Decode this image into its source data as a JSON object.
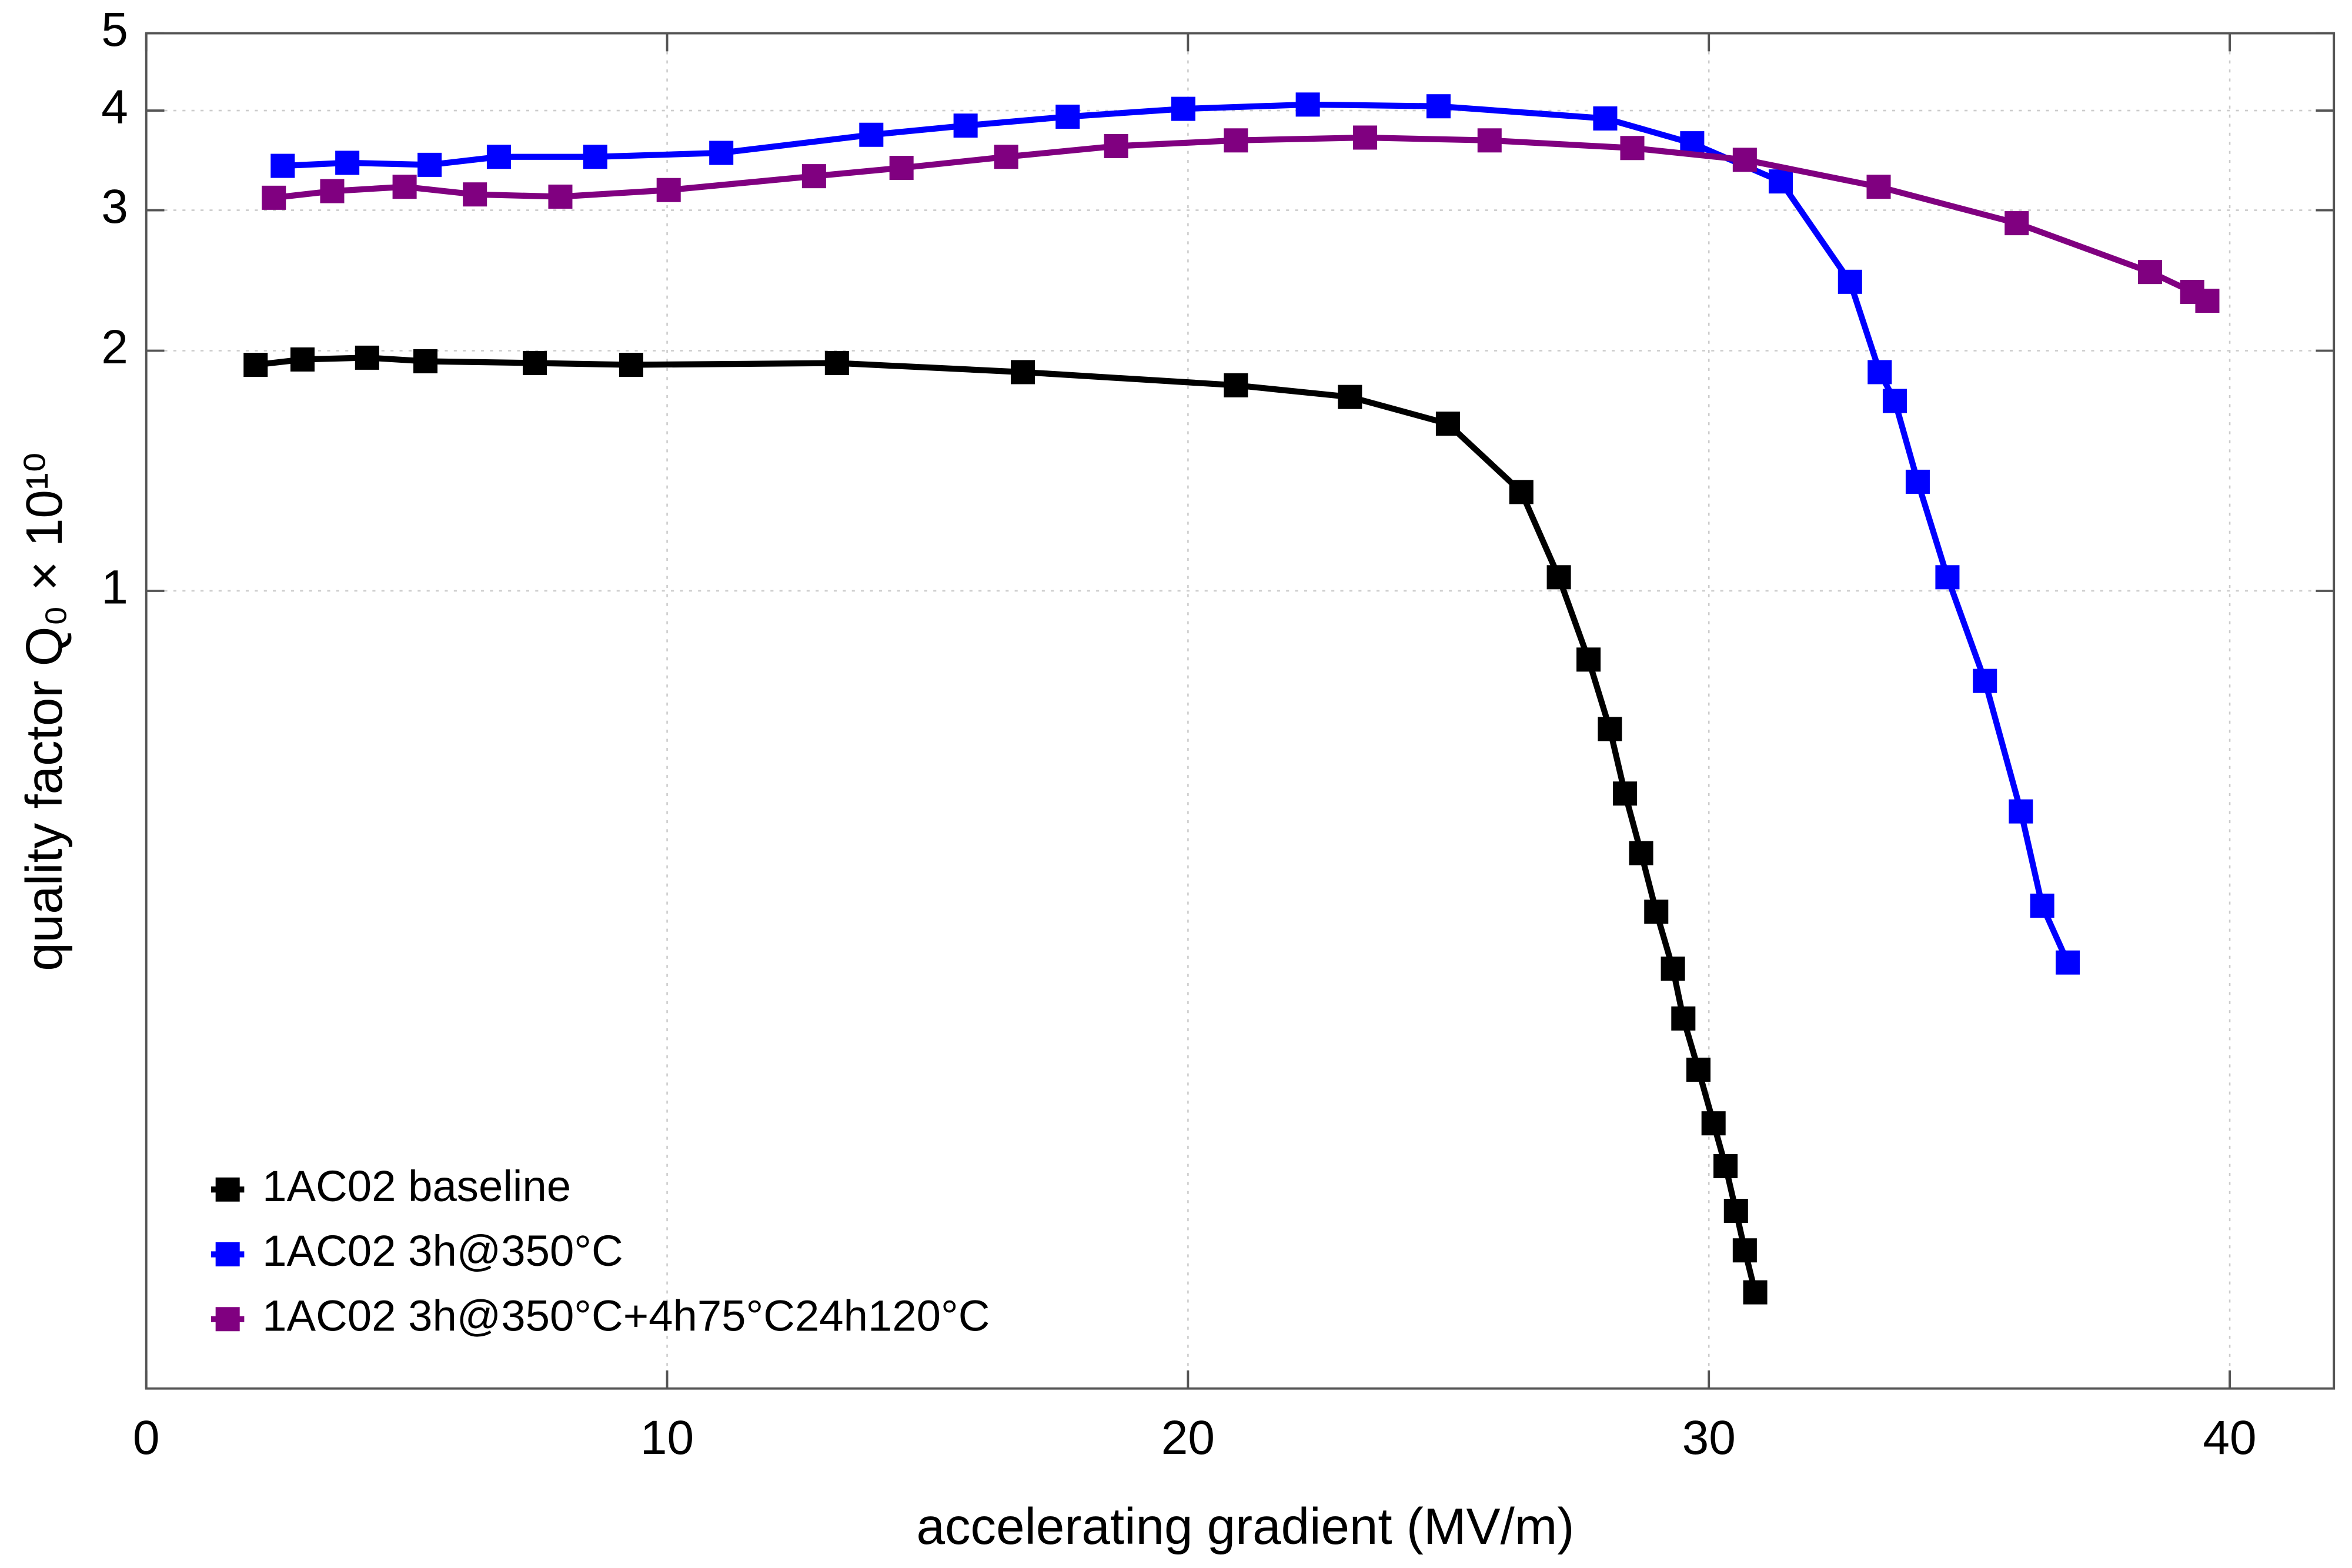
{
  "chart_data": {
    "type": "line",
    "xlabel": "accelerating gradient (MV/m)",
    "ylabel": "quality factor Q₀ × 10¹⁰",
    "xlim": [
      0,
      42
    ],
    "xticks": [
      0,
      10,
      20,
      30,
      40
    ],
    "ylim": [
      0.1,
      5
    ],
    "yticks": [
      1,
      2,
      3,
      4,
      5
    ],
    "log_y": true,
    "grid": true,
    "legend": "lower left",
    "series": [
      {
        "name": "1AC02 baseline",
        "color": "#000000",
        "x": [
          2.1,
          3.0,
          4.24,
          5.36,
          7.46,
          9.31,
          13.26,
          16.83,
          20.92,
          23.11,
          24.99,
          26.4,
          27.12,
          27.69,
          28.1,
          28.39,
          28.7,
          28.99,
          29.31,
          29.51,
          29.8,
          30.09,
          30.32,
          30.52,
          30.69,
          30.89
        ],
        "values": [
          1.92,
          1.95,
          1.96,
          1.94,
          1.93,
          1.92,
          1.93,
          1.88,
          1.81,
          1.75,
          1.62,
          1.33,
          1.04,
          0.82,
          0.671,
          0.557,
          0.469,
          0.396,
          0.336,
          0.291,
          0.251,
          0.215,
          0.19,
          0.167,
          0.149,
          0.132
        ]
      },
      {
        "name": "1AC02 3h@350°C",
        "color": "#0000ff",
        "x": [
          2.62,
          3.86,
          5.44,
          6.77,
          8.62,
          11.04,
          13.92,
          15.73,
          17.69,
          19.91,
          22.3,
          24.81,
          28.01,
          29.68,
          31.38,
          32.71,
          33.28,
          33.57,
          34.01,
          34.58,
          35.3,
          35.99,
          36.4,
          36.89
        ],
        "values": [
          3.41,
          3.44,
          3.42,
          3.5,
          3.5,
          3.54,
          3.73,
          3.83,
          3.93,
          4.02,
          4.07,
          4.05,
          3.91,
          3.64,
          3.26,
          2.44,
          1.88,
          1.73,
          1.37,
          1.04,
          0.771,
          0.529,
          0.403,
          0.342
        ]
      },
      {
        "name": "1AC02 3h@350°C+4h75°C24h120°C",
        "color": "#800080",
        "x": [
          2.45,
          3.57,
          4.96,
          6.31,
          7.95,
          10.03,
          12.82,
          14.5,
          16.51,
          18.62,
          20.92,
          23.4,
          25.79,
          28.53,
          30.69,
          33.26,
          35.91,
          38.47,
          39.28,
          39.57
        ],
        "values": [
          3.11,
          3.17,
          3.21,
          3.14,
          3.12,
          3.18,
          3.31,
          3.39,
          3.5,
          3.61,
          3.67,
          3.7,
          3.67,
          3.59,
          3.47,
          3.21,
          2.89,
          2.51,
          2.37,
          2.31
        ]
      }
    ]
  }
}
